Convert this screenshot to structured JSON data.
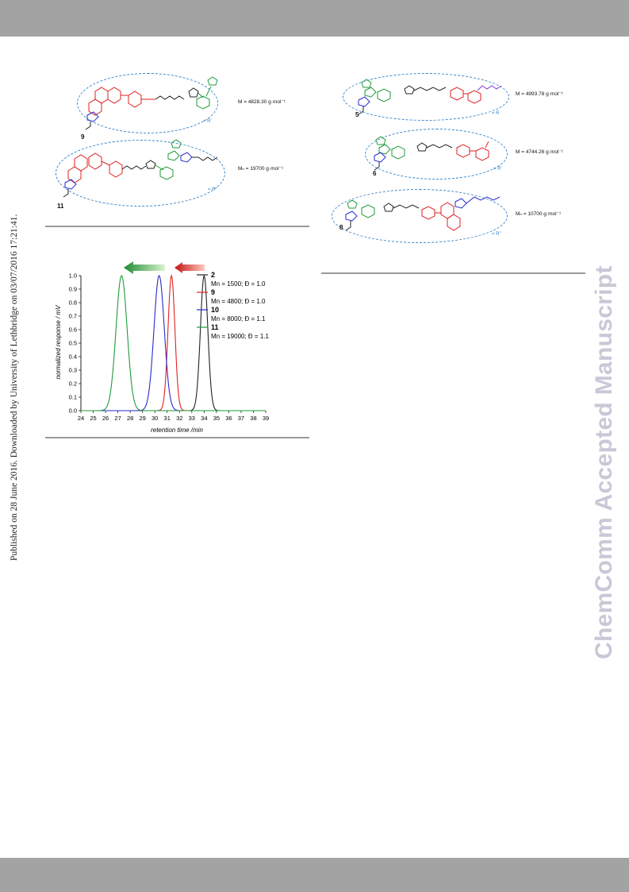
{
  "side_note": "Published on 28 June 2016. Downloaded by University of Lethbridge on 03/07/2016 17:21:41.",
  "watermark": "ChemComm Accepted Manuscript",
  "structures_left": [
    {
      "label": "9",
      "mass": "M = 4828.30 g·mol⁻¹",
      "tag": "= R'"
    },
    {
      "label": "11",
      "mass": "Mₙ = 19700 g·mol⁻¹",
      "tag": "= R''"
    }
  ],
  "structures_right": [
    {
      "label": "5",
      "mass": "M = 4993.78 g·mol⁻¹",
      "tag": "= R"
    },
    {
      "label": "6",
      "mass": "M = 4744.26 g·mol⁻¹",
      "tag": "= R'"
    },
    {
      "label": "8",
      "mass": "Mₙ = 10700 g·mol⁻¹",
      "tag": "= R''"
    }
  ],
  "colors": {
    "black": "#222222",
    "red": "#e02020",
    "blue": "#2a2ad0",
    "green": "#1f9a3a",
    "dashed": "#3a86c8"
  },
  "chart_data": {
    "type": "line",
    "xlabel": "retention time /min",
    "ylabel": "normalized response / mV",
    "xlim": [
      24,
      39
    ],
    "ylim": [
      0.0,
      1.0
    ],
    "x_ticks": [
      "24",
      "25",
      "26",
      "27",
      "28",
      "29",
      "30",
      "31",
      "32",
      "33",
      "34",
      "35",
      "36",
      "37",
      "38",
      "39"
    ],
    "y_ticks": [
      "0.0",
      "0.1",
      "0.2",
      "0.3",
      "0.4",
      "0.5",
      "0.6",
      "0.7",
      "0.8",
      "0.9",
      "1.0"
    ],
    "series": [
      {
        "name": "2",
        "color": "#222222",
        "peak": 34.0,
        "width": 0.3,
        "info": "Mn = 1500; Đ = 1.0"
      },
      {
        "name": "9",
        "color": "#e02020",
        "peak": 31.35,
        "width": 0.28,
        "info": "Mn = 4800; Đ = 1.0"
      },
      {
        "name": "10",
        "color": "#2a2ad0",
        "peak": 30.35,
        "width": 0.42,
        "info": "Mn = 8000; Đ = 1.1"
      },
      {
        "name": "11",
        "color": "#1f9a3a",
        "peak": 27.3,
        "width": 0.45,
        "info": "Mn = 19000; Đ = 1.1"
      }
    ]
  }
}
